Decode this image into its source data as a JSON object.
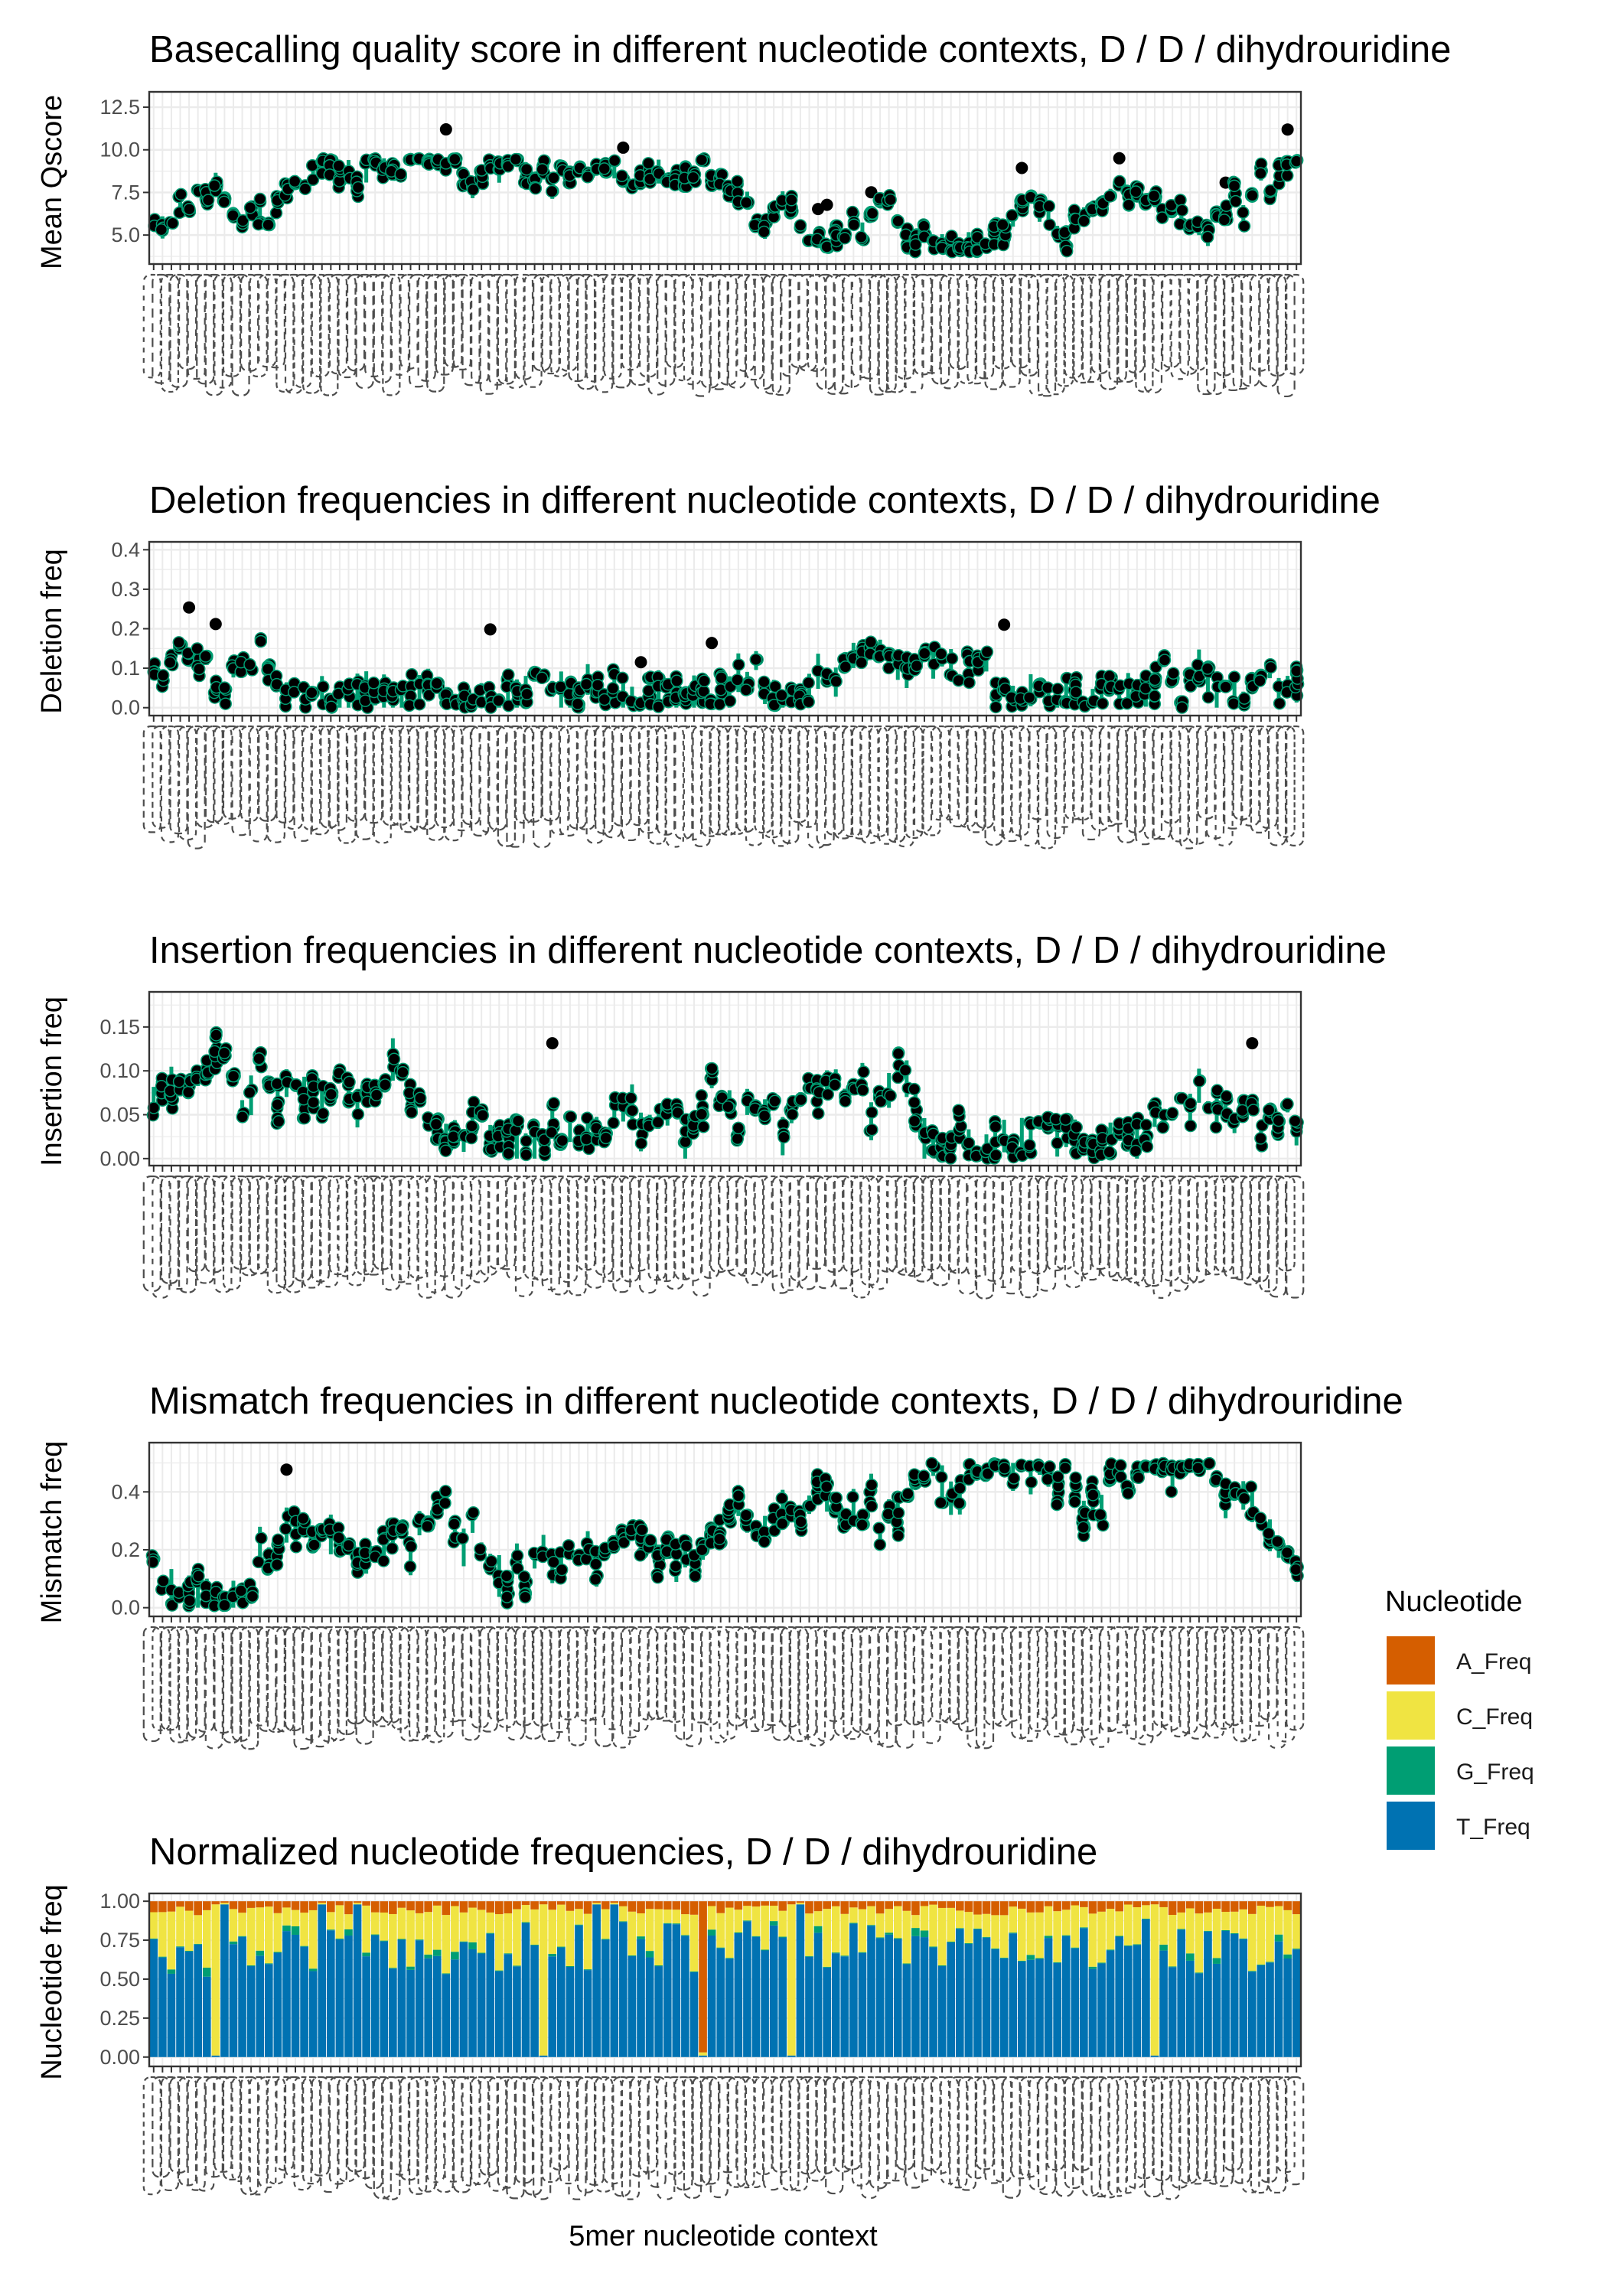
{
  "chart_data": [
    {
      "type": "scatter",
      "title": "Basecalling quality score in different nucleotide contexts, D / D / dihydrouridine",
      "ylabel": "Mean Qscore",
      "ylim": [
        3.3,
        13.4
      ],
      "yticks": [
        "5.0",
        "7.5",
        "10.0",
        "12.5"
      ],
      "ytick_values": [
        5.0,
        7.5,
        10.0,
        12.5
      ],
      "grid": true,
      "seed": 11,
      "lo": 4.0,
      "hi": 9.5,
      "outlier_chance": 0.05
    },
    {
      "type": "scatter",
      "title": "Deletion frequencies in different nucleotide contexts, D / D / dihydrouridine",
      "ylabel": "Deletion freq",
      "ylim": [
        -0.02,
        0.42
      ],
      "yticks": [
        "0.0",
        "0.1",
        "0.2",
        "0.3",
        "0.4"
      ],
      "ytick_values": [
        0.0,
        0.1,
        0.2,
        0.3,
        0.4
      ],
      "grid": true,
      "seed": 23,
      "lo": 0.0,
      "hi": 0.34,
      "outlier_chance": 0.03
    },
    {
      "type": "scatter",
      "title": "Insertion frequencies in different nucleotide contexts, D / D / dihydrouridine",
      "ylabel": "Insertion freq",
      "ylim": [
        -0.008,
        0.19
      ],
      "yticks": [
        "0.00",
        "0.05",
        "0.10",
        "0.15"
      ],
      "ytick_values": [
        0.0,
        0.05,
        0.1,
        0.15
      ],
      "grid": true,
      "seed": 37,
      "lo": 0.0,
      "hi": 0.17,
      "outlier_chance": 0.03
    },
    {
      "type": "scatter",
      "title": "Mismatch frequencies in different nucleotide contexts, D / D / dihydrouridine",
      "ylabel": "Mismatch freq",
      "ylim": [
        -0.03,
        0.57
      ],
      "yticks": [
        "0.0",
        "0.2",
        "0.4"
      ],
      "ytick_values": [
        0.0,
        0.2,
        0.4
      ],
      "grid": true,
      "seed": 53,
      "lo": 0.0,
      "hi": 0.5,
      "outlier_chance": 0.03
    },
    {
      "type": "bar",
      "stacked": true,
      "title": "Normalized nucleotide frequencies, D / D / dihydrouridine",
      "ylabel": "Nucleotide freq",
      "xlabel": "5mer nucleotide context",
      "ylim": [
        -0.06,
        1.05
      ],
      "yticks": [
        "0.00",
        "0.25",
        "0.50",
        "0.75",
        "1.00"
      ],
      "ytick_values": [
        0.0,
        0.25,
        0.5,
        0.75,
        1.0
      ],
      "grid": true,
      "seed": 71,
      "series": [
        {
          "name": "A_Freq",
          "color": "#D55E00"
        },
        {
          "name": "C_Freq",
          "color": "#F0E442"
        },
        {
          "name": "G_Freq",
          "color": "#009E73"
        },
        {
          "name": "T_Freq",
          "color": "#0072B2"
        }
      ]
    }
  ],
  "legend": {
    "title": "Nucleotide",
    "position": "right",
    "items": [
      {
        "label": "A_Freq",
        "color": "#D55E00"
      },
      {
        "label": "C_Freq",
        "color": "#F0E442"
      },
      {
        "label": "G_Freq",
        "color": "#009E73"
      },
      {
        "label": "T_Freq",
        "color": "#0072B2"
      }
    ]
  },
  "colors": {
    "point_fill": "#000000",
    "range_line": "#009E73",
    "grid": "#ebebeb",
    "axis_text": "#4d4d4d"
  },
  "n_contexts": 130
}
